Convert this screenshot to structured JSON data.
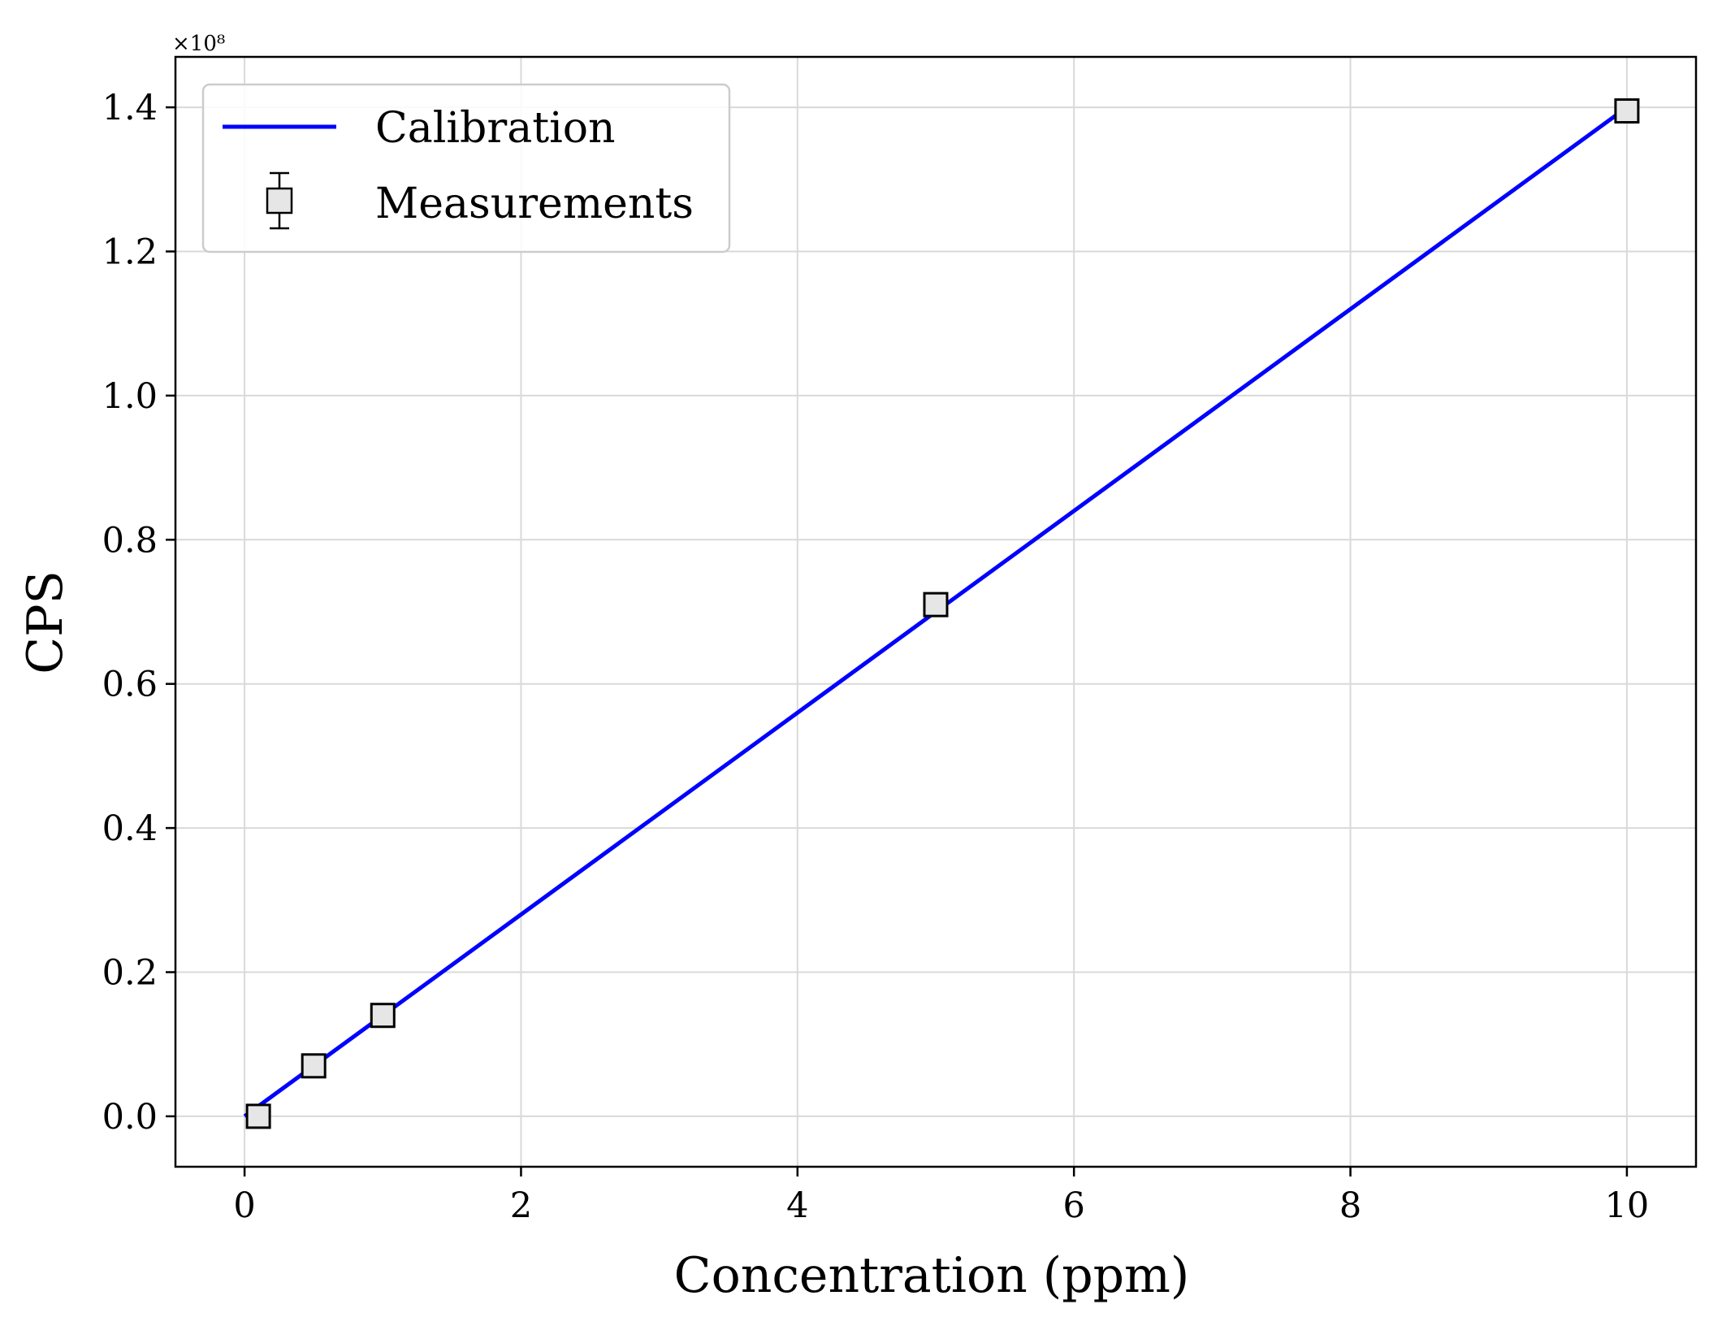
{
  "chart_data": {
    "type": "line",
    "xlabel": "Concentration (ppm)",
    "ylabel": "CPS",
    "y_offset_label": "×10⁸",
    "y_scale": 100000000,
    "xlim": [
      -0.5,
      10.5
    ],
    "ylim": [
      -0.07,
      1.47
    ],
    "grid": true,
    "legend_position": "top-left",
    "x_ticks": [
      0,
      2,
      4,
      6,
      8,
      10
    ],
    "x_tick_labels": [
      "0",
      "2",
      "4",
      "6",
      "8",
      "10"
    ],
    "y_ticks": [
      0.0,
      0.2,
      0.4,
      0.6,
      0.8,
      1.0,
      1.2,
      1.4
    ],
    "y_tick_labels": [
      "0.0",
      "0.2",
      "0.4",
      "0.6",
      "0.8",
      "1.0",
      "1.2",
      "1.4"
    ],
    "series": [
      {
        "name": "Calibration",
        "kind": "line",
        "color": "#0000ff",
        "x": [
          0.0,
          10.0
        ],
        "y": [
          0.0,
          1.4
        ]
      },
      {
        "name": "Measurements",
        "kind": "errorbar-marker",
        "marker": "square",
        "face_color": "#e6e6e6",
        "edge_color": "#000000",
        "x": [
          0.1,
          0.5,
          1.0,
          5.0,
          10.0
        ],
        "y": [
          0.0,
          0.07,
          0.14,
          0.71,
          1.395
        ]
      }
    ]
  }
}
